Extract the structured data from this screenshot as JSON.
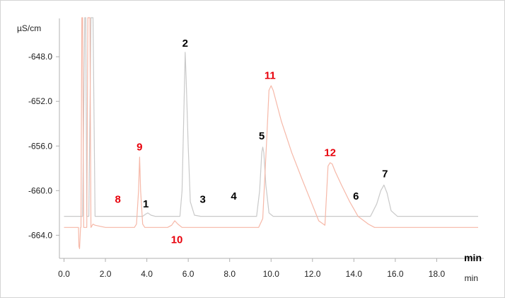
{
  "chart_data": {
    "type": "line",
    "ylabel": "µS/cm",
    "xlabel": "min",
    "xlabel_secondary": "min",
    "xlim": [
      0,
      20
    ],
    "ylim": [
      -665.5,
      -644.5
    ],
    "x_ticks": [
      0,
      2,
      4,
      6,
      8,
      10,
      12,
      14,
      16,
      18
    ],
    "x_tick_labels": [
      "0.0",
      "2.0",
      "4.0",
      "6.0",
      "8.0",
      "10.0",
      "12.0",
      "14.0",
      "16.0",
      "18.0"
    ],
    "y_ticks": [
      -648,
      -652,
      -656,
      -660,
      -664
    ],
    "y_tick_labels": [
      "-648.0",
      "-652.0",
      "-656.0",
      "-660.0",
      "-664.0"
    ],
    "grid": false,
    "series": [
      {
        "color": "#c9c9c9",
        "x": [
          0.0,
          0.9,
          1.0,
          1.05,
          1.1,
          1.2,
          1.3,
          1.4,
          1.5,
          2.5,
          3.8,
          3.95,
          4.05,
          4.2,
          4.4,
          5.6,
          5.7,
          5.8,
          5.85,
          5.9,
          6.0,
          6.1,
          6.3,
          6.6,
          7.0,
          9.3,
          9.45,
          9.55,
          9.6,
          9.65,
          9.75,
          9.9,
          10.1,
          14.8,
          15.1,
          15.3,
          15.45,
          15.6,
          15.8,
          16.1,
          20.0
        ],
        "y": [
          -662.3,
          -662.3,
          -644.5,
          -644.5,
          -662.3,
          -662.3,
          -644.5,
          -644.5,
          -662.3,
          -662.3,
          -662.3,
          -662.1,
          -662.0,
          -662.2,
          -662.3,
          -662.3,
          -660.0,
          -652.0,
          -647.6,
          -650.0,
          -656.0,
          -661.0,
          -662.2,
          -662.3,
          -662.3,
          -662.3,
          -660.0,
          -656.6,
          -656.1,
          -656.6,
          -659.5,
          -662.0,
          -662.3,
          -662.3,
          -661.2,
          -660.0,
          -659.5,
          -660.2,
          -661.8,
          -662.3,
          -662.3
        ]
      },
      {
        "color": "#f6b8a8",
        "x": [
          0.0,
          0.7,
          0.72,
          0.75,
          0.8,
          0.82,
          0.86,
          0.9,
          0.95,
          1.1,
          1.15,
          1.25,
          1.3,
          1.4,
          1.5,
          2.0,
          3.4,
          3.5,
          3.6,
          3.65,
          3.7,
          3.8,
          3.9,
          4.1,
          4.5,
          5.0,
          5.2,
          5.35,
          5.5,
          5.7,
          6.5,
          9.4,
          9.6,
          9.8,
          9.9,
          10.0,
          10.1,
          10.5,
          11.0,
          11.5,
          12.0,
          12.3,
          12.6,
          12.75,
          12.85,
          12.95,
          13.1,
          13.4,
          13.8,
          14.2,
          14.7,
          15.0,
          20.0
        ],
        "y": [
          -663.3,
          -663.3,
          -665.0,
          -665.2,
          -663.3,
          -663.3,
          -644.5,
          -644.5,
          -663.3,
          -663.3,
          -644.5,
          -644.5,
          -663.3,
          -663.0,
          -663.1,
          -663.3,
          -663.3,
          -663.0,
          -660.0,
          -657.0,
          -660.0,
          -663.0,
          -663.3,
          -663.3,
          -663.3,
          -663.3,
          -663.1,
          -662.7,
          -663.0,
          -663.3,
          -663.3,
          -663.3,
          -662.5,
          -655.0,
          -651.0,
          -650.6,
          -651.0,
          -653.8,
          -656.6,
          -659.0,
          -661.3,
          -662.7,
          -663.1,
          -657.8,
          -657.5,
          -657.6,
          -658.3,
          -659.5,
          -661.0,
          -662.3,
          -663.0,
          -663.3,
          -663.3
        ]
      }
    ],
    "peak_labels": [
      {
        "text": "1",
        "x": 3.95,
        "y": -661.5,
        "color": "#000000"
      },
      {
        "text": "2",
        "x": 5.85,
        "y": -647.1,
        "color": "#000000"
      },
      {
        "text": "3",
        "x": 6.7,
        "y": -661.1,
        "color": "#000000"
      },
      {
        "text": "4",
        "x": 8.2,
        "y": -660.8,
        "color": "#000000"
      },
      {
        "text": "5",
        "x": 9.55,
        "y": -655.4,
        "color": "#000000"
      },
      {
        "text": "6",
        "x": 14.1,
        "y": -660.8,
        "color": "#000000"
      },
      {
        "text": "7",
        "x": 15.5,
        "y": -658.8,
        "color": "#000000"
      },
      {
        "text": "8",
        "x": 2.6,
        "y": -661.1,
        "color": "#e8000b"
      },
      {
        "text": "9",
        "x": 3.65,
        "y": -656.4,
        "color": "#e8000b"
      },
      {
        "text": "10",
        "x": 5.45,
        "y": -664.7,
        "color": "#e8000b"
      },
      {
        "text": "11",
        "x": 9.95,
        "y": -650.0,
        "color": "#e8000b"
      },
      {
        "text": "12",
        "x": 12.85,
        "y": -656.9,
        "color": "#e8000b"
      }
    ]
  }
}
